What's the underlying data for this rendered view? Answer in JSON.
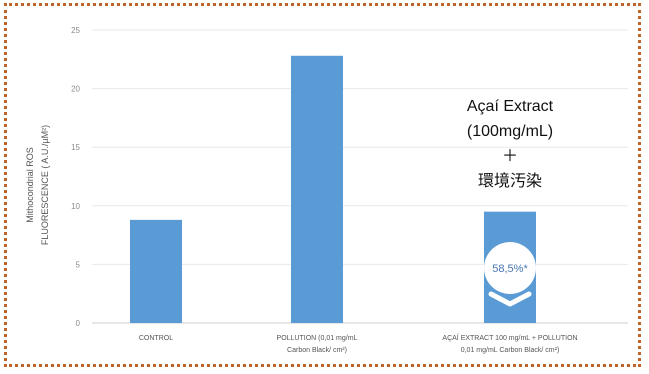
{
  "chart_data": {
    "type": "bar",
    "ylabel_lines": [
      "Mithocondrial ROS",
      "FLUORESCENCE ( A.U./µM²)"
    ],
    "yticks": [
      0,
      5,
      10,
      15,
      20,
      25
    ],
    "ylim": [
      0,
      25
    ],
    "grid": true,
    "categories": [
      {
        "lines": [
          "CONTROL"
        ]
      },
      {
        "lines": [
          "POLLUTION (0,01 mg/mL",
          "Carbon Black/ cm²)"
        ]
      },
      {
        "lines": [
          "AÇAÍ EXTRACT 100 mg/mL + POLLUTION",
          "0,01 mg/mL Carbon Black/ cm²)"
        ]
      }
    ],
    "values": [
      8.8,
      22.8,
      9.5
    ],
    "bar_color": "#5b9bd5",
    "annotation": {
      "lines": [
        "Açaí Extract",
        "(100mg/mL)",
        "＋",
        "環境汚染"
      ],
      "badge": "58,5%*"
    }
  }
}
